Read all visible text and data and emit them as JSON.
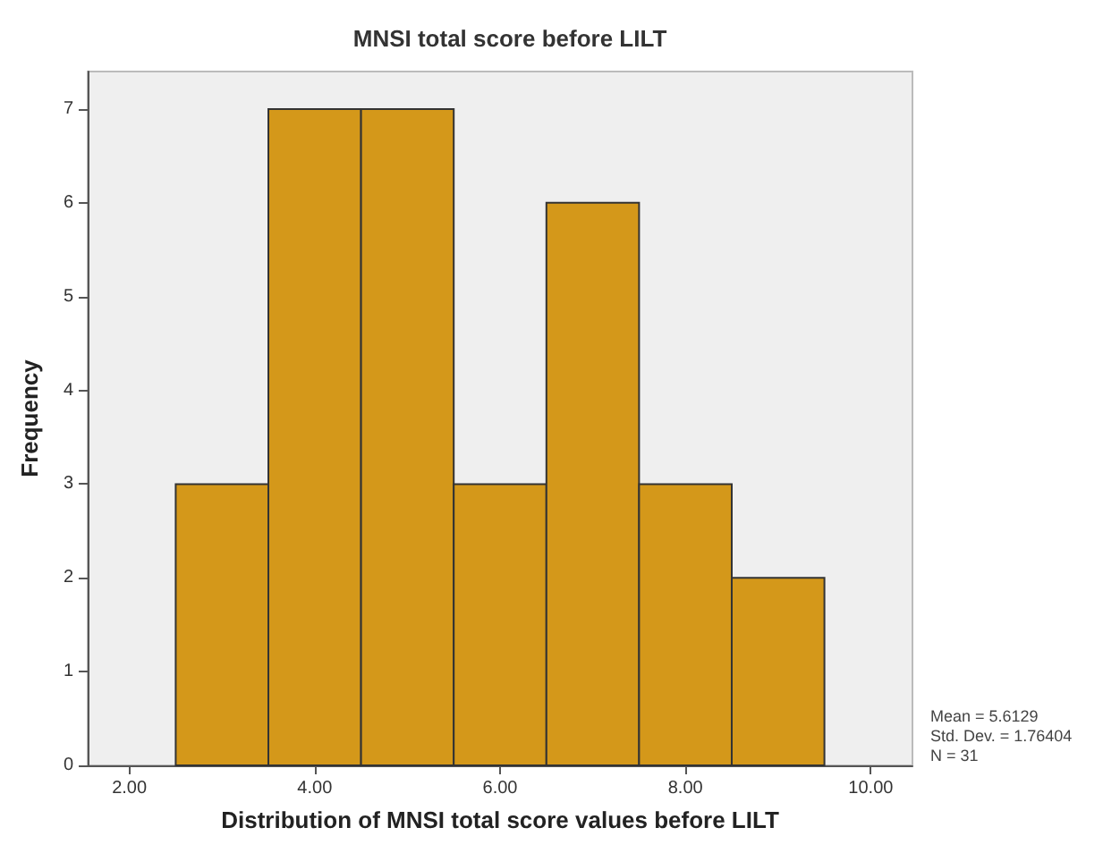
{
  "chart_data": {
    "type": "histogram",
    "title": "MNSI total score before LILT",
    "xlabel": "Distribution of MNSI total score values before LILT",
    "ylabel": "Frequency",
    "bins": [
      2.5,
      3.5,
      4.5,
      5.5,
      6.5,
      7.5,
      8.5,
      9.5
    ],
    "values": [
      3,
      7,
      7,
      3,
      6,
      3,
      2
    ],
    "color": "#d4981a",
    "xlim": [
      1.55,
      10.45
    ],
    "xticks": [
      {
        "value": 2,
        "label": "2.00"
      },
      {
        "value": 4,
        "label": "4.00"
      },
      {
        "value": 6,
        "label": "6.00"
      },
      {
        "value": 8,
        "label": "8.00"
      },
      {
        "value": 10,
        "label": "10.00"
      }
    ],
    "ylim": [
      0,
      7.4
    ],
    "yticks": [
      0,
      1,
      2,
      3,
      4,
      5,
      6,
      7
    ],
    "grid": false,
    "annotations": [
      "Mean = 5.6129",
      "Std. Dev. = 1.76404",
      "N = 31"
    ]
  }
}
